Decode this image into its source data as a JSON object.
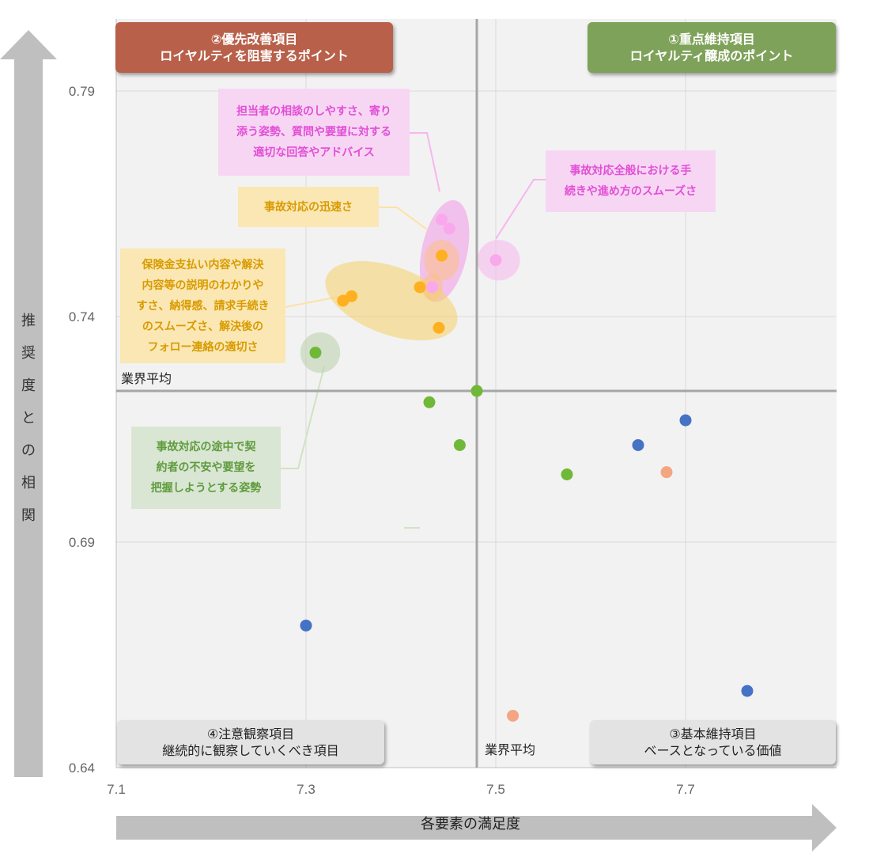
{
  "chart_data": {
    "type": "scatter",
    "title": "",
    "xlabel": "各要素の満足度",
    "ylabel": "推奨度との相関",
    "xlim": [
      7.1,
      7.86
    ],
    "ylim": [
      0.64,
      0.795
    ],
    "x_ticks": [
      "7.1",
      "7.3",
      "7.5",
      "7.7"
    ],
    "y_ticks": [
      "0.64",
      "0.69",
      "0.74",
      "0.79"
    ],
    "reference_lines": {
      "x": 7.48,
      "y": 0.7235,
      "label_x": "業界平均",
      "label_y": "業界平均"
    },
    "series": [
      {
        "color": "#f9a8ec",
        "points": [
          {
            "x": 7.443,
            "y": 0.7615
          },
          {
            "x": 7.451,
            "y": 0.7595
          },
          {
            "x": 7.5,
            "y": 0.7525
          },
          {
            "x": 7.433,
            "y": 0.7465
          }
        ]
      },
      {
        "color": "#ffb020",
        "points": [
          {
            "x": 7.443,
            "y": 0.7535
          },
          {
            "x": 7.42,
            "y": 0.7465
          },
          {
            "x": 7.348,
            "y": 0.7445
          },
          {
            "x": 7.339,
            "y": 0.7435
          },
          {
            "x": 7.44,
            "y": 0.7375
          }
        ]
      },
      {
        "color": "#70b838",
        "points": [
          {
            "x": 7.31,
            "y": 0.732
          },
          {
            "x": 7.48,
            "y": 0.7235
          },
          {
            "x": 7.43,
            "y": 0.721
          },
          {
            "x": 7.462,
            "y": 0.7115
          },
          {
            "x": 7.575,
            "y": 0.705
          }
        ]
      },
      {
        "color": "#4472c4",
        "points": [
          {
            "x": 7.7,
            "y": 0.717
          },
          {
            "x": 7.65,
            "y": 0.7115
          },
          {
            "x": 7.3,
            "y": 0.6715
          },
          {
            "x": 7.765,
            "y": 0.657
          }
        ]
      },
      {
        "color": "#f4a582",
        "points": [
          {
            "x": 7.68,
            "y": 0.7055
          },
          {
            "x": 7.518,
            "y": 0.6515
          }
        ]
      }
    ],
    "highlights": [
      {
        "color": "#f099e5",
        "cx": 7.446,
        "cy": 0.7545,
        "rx": 0.024,
        "ry": 0.0115,
        "rotate": 12
      },
      {
        "color": "#f7b6ee",
        "cx": 7.503,
        "cy": 0.7525,
        "rx": 0.0225,
        "ry": 0.0045,
        "rotate": 0
      },
      {
        "color": "#fbbf84",
        "cx": 7.443,
        "cy": 0.7525,
        "rx": 0.0185,
        "ry": 0.0045,
        "rotate": 0
      },
      {
        "color": "#fbbf84",
        "cx": 7.433,
        "cy": 0.7465,
        "rx": 0.011,
        "ry": 0.003,
        "rotate": 0
      },
      {
        "color": "#f6d168",
        "cx": 7.39,
        "cy": 0.7435,
        "rx": 0.073,
        "ry": 0.0075,
        "rotate": 20
      },
      {
        "color": "#b9cfac",
        "cx": 7.315,
        "cy": 0.732,
        "rx": 0.021,
        "ry": 0.0045,
        "rotate": 0
      }
    ]
  },
  "quadrants": {
    "q2": {
      "line1": "②優先改善項目",
      "line2": "ロイヤルティを阻害するポイント",
      "color": "#b8604a"
    },
    "q1": {
      "line1": "①重点維持項目",
      "line2": "ロイヤルティ醸成のポイント",
      "color": "#7fa25a"
    },
    "q4": {
      "line1": "④注意観察項目",
      "line2": "継続的に観察していくべき項目"
    },
    "q3": {
      "line1": "③基本維持項目",
      "line2": "ベースとなっている価値"
    }
  },
  "callouts": {
    "pink1": [
      "担当者の相談のしやすさ、寄り",
      "添う姿勢、質問や要望に対する",
      "適切な回答やアドバイス"
    ],
    "pink2": [
      "事故対応全般における手",
      "続きや進め方のスムーズさ"
    ],
    "orange1": [
      "事故対応の迅速さ"
    ],
    "orange2": [
      "保険金支払い内容や解決",
      "内容等の説明のわかりや",
      "すさ、納得感、請求手続き",
      "のスムーズさ、解決後の",
      "フォロー連絡の適切さ"
    ],
    "green1": [
      "事故対応の途中で契",
      "約者の不安や要望を",
      "把握しようとする姿勢"
    ]
  },
  "axes": {
    "y_label_chars": [
      "推",
      "奨",
      "度",
      "と",
      "の",
      "相",
      "関"
    ],
    "x_label": "各要素の満足度"
  }
}
